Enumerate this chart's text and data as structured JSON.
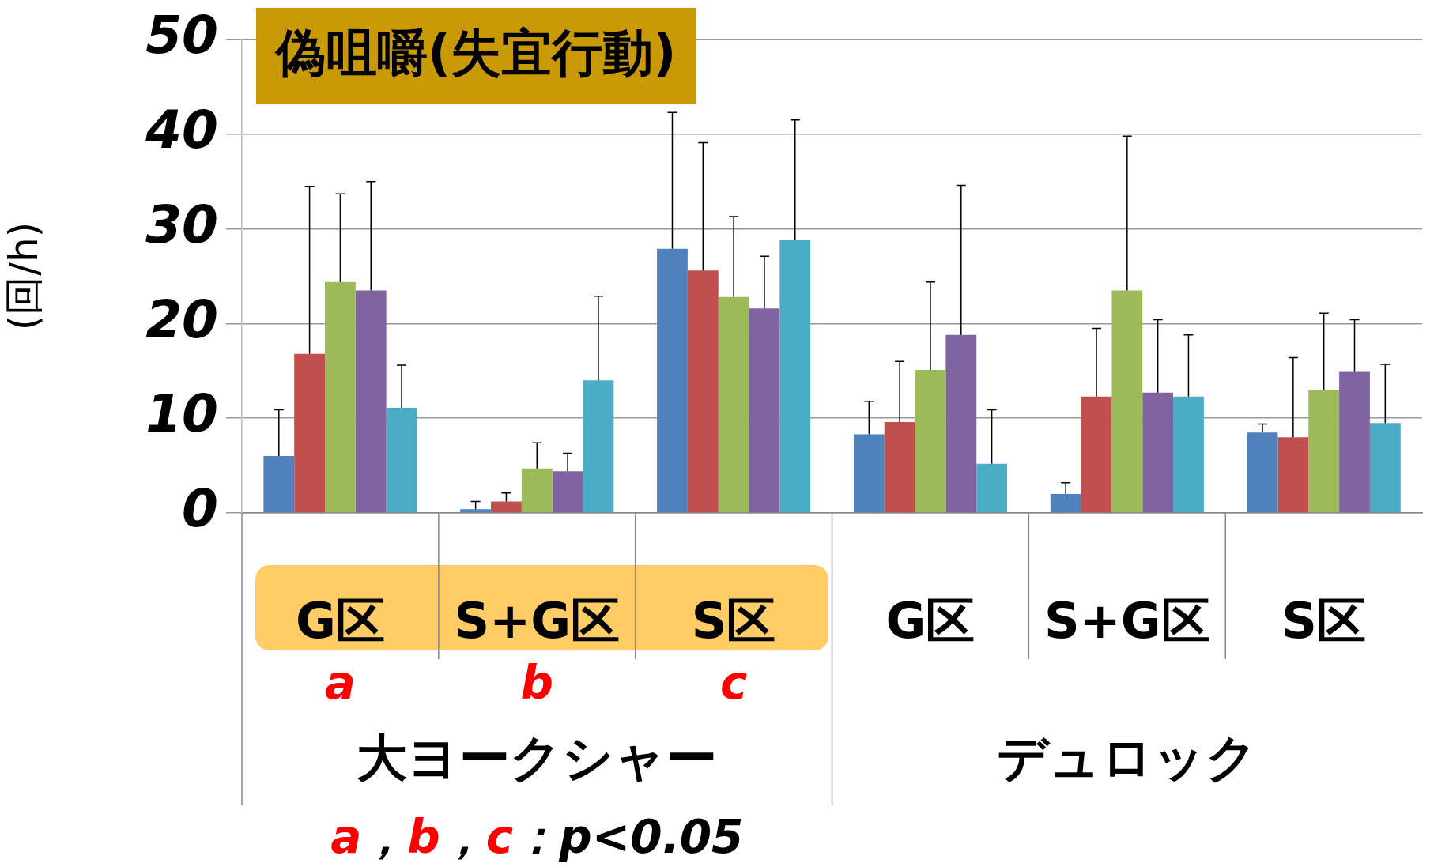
{
  "chart_data": {
    "type": "bar",
    "title": "偽咀嚼(失宜行動)",
    "ylabel": "(回/h)",
    "categories": [
      "G区",
      "S+G区",
      "S区",
      "G区",
      "S+G区",
      "S区"
    ],
    "series": [
      {
        "color": "#4f81bd",
        "values": [
          6.0,
          0.4,
          27.9,
          8.3,
          2.0,
          8.5
        ],
        "errors": [
          [
            6.0,
            10.9
          ],
          [
            0.4,
            1.2
          ],
          [
            27.9,
            42.3
          ],
          [
            8.3,
            11.8
          ],
          [
            2.0,
            3.2
          ],
          [
            8.5,
            9.4
          ]
        ]
      },
      {
        "color": "#c0504d",
        "values": [
          16.8,
          1.2,
          25.6,
          9.6,
          12.3,
          8.0
        ],
        "errors": [
          [
            16.8,
            34.5
          ],
          [
            1.2,
            2.1
          ],
          [
            25.6,
            39.1
          ],
          [
            9.6,
            16.0
          ],
          [
            12.3,
            19.5
          ],
          [
            8.0,
            16.4
          ]
        ]
      },
      {
        "color": "#9bbb59",
        "values": [
          24.4,
          4.7,
          22.8,
          15.1,
          23.5,
          13.0
        ],
        "errors": [
          [
            24.4,
            33.7
          ],
          [
            4.7,
            7.4
          ],
          [
            22.8,
            31.3
          ],
          [
            15.1,
            24.4
          ],
          [
            23.5,
            39.8
          ],
          [
            13.0,
            21.1
          ]
        ]
      },
      {
        "color": "#8064a2",
        "values": [
          23.5,
          4.4,
          21.6,
          18.8,
          12.7,
          14.9
        ],
        "errors": [
          [
            23.5,
            35.0
          ],
          [
            4.4,
            6.3
          ],
          [
            21.6,
            27.1
          ],
          [
            18.8,
            34.6
          ],
          [
            12.7,
            20.4
          ],
          [
            14.9,
            20.4
          ]
        ]
      },
      {
        "color": "#4bacc6",
        "values": [
          11.1,
          14.0,
          28.8,
          5.2,
          12.3,
          9.5
        ],
        "errors": [
          [
            11.1,
            15.6
          ],
          [
            14.0,
            22.9
          ],
          [
            28.8,
            41.5
          ],
          [
            5.2,
            10.9
          ],
          [
            12.3,
            18.8
          ],
          [
            9.5,
            15.7
          ]
        ]
      }
    ],
    "ylim": [
      0,
      50
    ],
    "yticks": [
      0,
      10,
      20,
      30,
      40,
      50
    ],
    "grid": "y",
    "legend": false,
    "annotations": [
      "a",
      "b",
      "c",
      "大ヨークシャー",
      "デュロック",
      "a，b，c：p<0.05"
    ]
  }
}
